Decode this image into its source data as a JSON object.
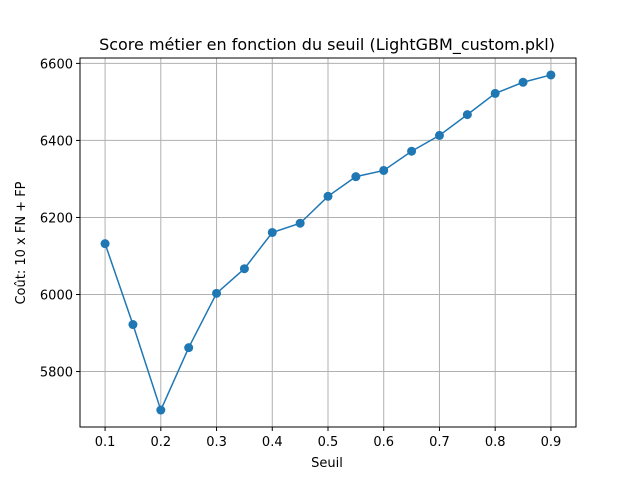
{
  "chart_data": {
    "type": "line",
    "title": "Score métier en fonction du seuil (LightGBM_custom.pkl)",
    "xlabel": "Seuil",
    "ylabel": "Coût: 10 x FN + FP",
    "x": [
      0.1,
      0.15,
      0.2,
      0.25,
      0.3,
      0.35,
      0.4,
      0.45,
      0.5,
      0.55,
      0.6,
      0.65,
      0.7,
      0.75,
      0.8,
      0.85,
      0.9
    ],
    "series": [
      {
        "values": [
          6132,
          5922,
          5700,
          5862,
          6003,
          6067,
          6161,
          6185,
          6255,
          6306,
          6322,
          6372,
          6413,
          6467,
          6522,
          6551,
          6570
        ],
        "color": "#1f77b4",
        "marker": "circle"
      }
    ],
    "xlim": [
      0.055,
      0.945
    ],
    "ylim": [
      5656,
      6614
    ],
    "xticks": [
      0.1,
      0.2,
      0.3,
      0.4,
      0.5,
      0.6,
      0.7,
      0.8,
      0.9
    ],
    "xtick_labels": [
      "0.1",
      "0.2",
      "0.3",
      "0.4",
      "0.5",
      "0.6",
      "0.7",
      "0.8",
      "0.9"
    ],
    "yticks": [
      5800,
      6000,
      6200,
      6400,
      6600
    ],
    "ytick_labels": [
      "5800",
      "6000",
      "6200",
      "6400",
      "6600"
    ],
    "grid": true,
    "legend": "none"
  }
}
